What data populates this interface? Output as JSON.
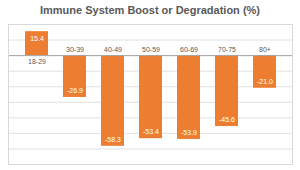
{
  "chart_data": {
    "type": "bar",
    "title": "Immune System Boost or Degradation (%)",
    "categories": [
      "18-29",
      "30-39",
      "40-49",
      "50-59",
      "60-69",
      "70-75",
      "80+"
    ],
    "values": [
      15.4,
      -26.9,
      -58.3,
      -53.4,
      -53.9,
      -45.6,
      -21.0
    ],
    "value_labels": [
      "15.4",
      "-26.9",
      "-58.3",
      "-53.4",
      "-53.9",
      "-45.6",
      "-21.0"
    ],
    "data_labels": true,
    "color": "#ed7d31",
    "ylim": [
      -70,
      20
    ],
    "yticks": [
      -70,
      -60,
      -50,
      -40,
      -30,
      -20,
      -10,
      0,
      10,
      20
    ],
    "grid": true,
    "tick_labels": "x"
  }
}
